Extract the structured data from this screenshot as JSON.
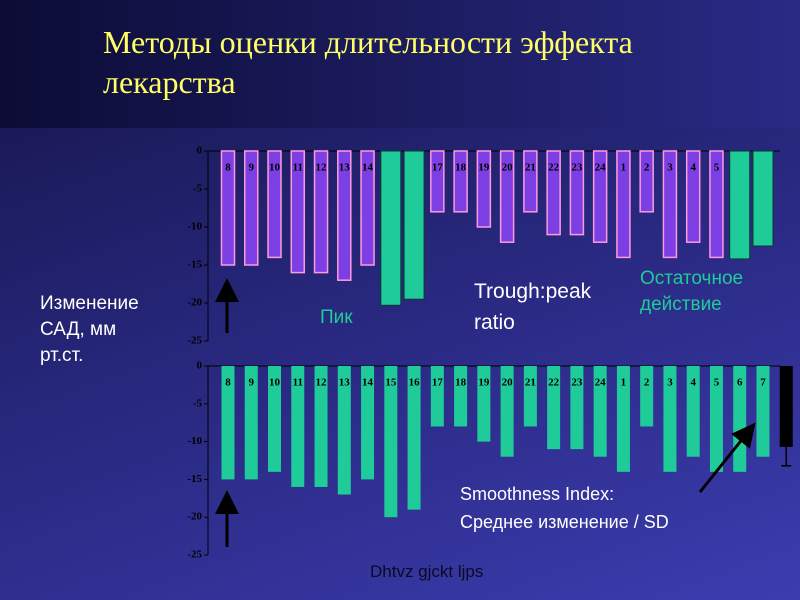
{
  "slide": {
    "title": [
      "Методы оценки длительности эффекта",
      "лекарства"
    ],
    "y_label": [
      "Изменение",
      "САД, мм",
      "рт.ст."
    ],
    "peak": "Пик",
    "trough_peak": [
      "Trough:peak",
      "ratio"
    ],
    "residual": [
      "Остаточное",
      "действие"
    ],
    "smoothness": [
      "Smoothness Index:",
      "Среднее изменение / SD"
    ],
    "x_label": "Dhtvz gjckt ljps"
  },
  "chart_data": [
    {
      "type": "bar",
      "categories": [
        "8",
        "9",
        "10",
        "11",
        "12",
        "13",
        "14",
        null,
        null,
        "17",
        "18",
        "19",
        "20",
        "21",
        "22",
        "23",
        "24",
        "1",
        "2",
        "3",
        "4",
        "5",
        null,
        null
      ],
      "values": [
        -15,
        -15,
        -14,
        -16,
        -16,
        -17,
        -15,
        -20.3,
        -19.5,
        -8,
        -8,
        -10,
        -12,
        -8,
        -11,
        -11,
        -12,
        -14,
        -8,
        -14,
        -12,
        -14,
        -14.2,
        -12.5
      ],
      "color": "#7b3fe4",
      "colors": [
        "#7b3fe4",
        "#7b3fe4",
        "#7b3fe4",
        "#7b3fe4",
        "#7b3fe4",
        "#7b3fe4",
        "#7b3fe4",
        "#1fcc99",
        "#1fcc99",
        "#7b3fe4",
        "#7b3fe4",
        "#7b3fe4",
        "#7b3fe4",
        "#7b3fe4",
        "#7b3fe4",
        "#7b3fe4",
        "#7b3fe4",
        "#7b3fe4",
        "#7b3fe4",
        "#7b3fe4",
        "#7b3fe4",
        "#7b3fe4",
        "#1fcc99",
        "#1fcc99"
      ],
      "ylim": [
        0,
        -25
      ],
      "yticks": [
        0,
        -5,
        -10,
        -15,
        -20,
        -25
      ]
    },
    {
      "type": "bar",
      "categories": [
        "8",
        "9",
        "10",
        "11",
        "12",
        "13",
        "14",
        "15",
        "16",
        "17",
        "18",
        "19",
        "20",
        "21",
        "22",
        "23",
        "24",
        "1",
        "2",
        "3",
        "4",
        "5",
        "6",
        "7",
        null
      ],
      "values": [
        -15,
        -15,
        -14,
        -16,
        -16,
        -17,
        -15,
        -20,
        -19,
        -8,
        -8,
        -10,
        -12,
        -8,
        -11,
        -11,
        -12,
        -14,
        -8,
        -14,
        -12,
        -14,
        -14,
        -12,
        -10.7
      ],
      "errors": [
        null,
        null,
        null,
        null,
        null,
        null,
        null,
        null,
        null,
        null,
        null,
        null,
        null,
        null,
        null,
        null,
        null,
        null,
        null,
        null,
        null,
        null,
        null,
        null,
        2.5
      ],
      "color": "#1fcc99",
      "colors": [
        "#1fcc99",
        "#1fcc99",
        "#1fcc99",
        "#1fcc99",
        "#1fcc99",
        "#1fcc99",
        "#1fcc99",
        "#1fcc99",
        "#1fcc99",
        "#1fcc99",
        "#1fcc99",
        "#1fcc99",
        "#1fcc99",
        "#1fcc99",
        "#1fcc99",
        "#1fcc99",
        "#1fcc99",
        "#1fcc99",
        "#1fcc99",
        "#1fcc99",
        "#1fcc99",
        "#1fcc99",
        "#1fcc99",
        "#1fcc99",
        "#000000"
      ],
      "ylim": [
        0,
        -25
      ],
      "yticks": [
        0,
        -5,
        -10,
        -15,
        -20,
        -25
      ]
    }
  ]
}
